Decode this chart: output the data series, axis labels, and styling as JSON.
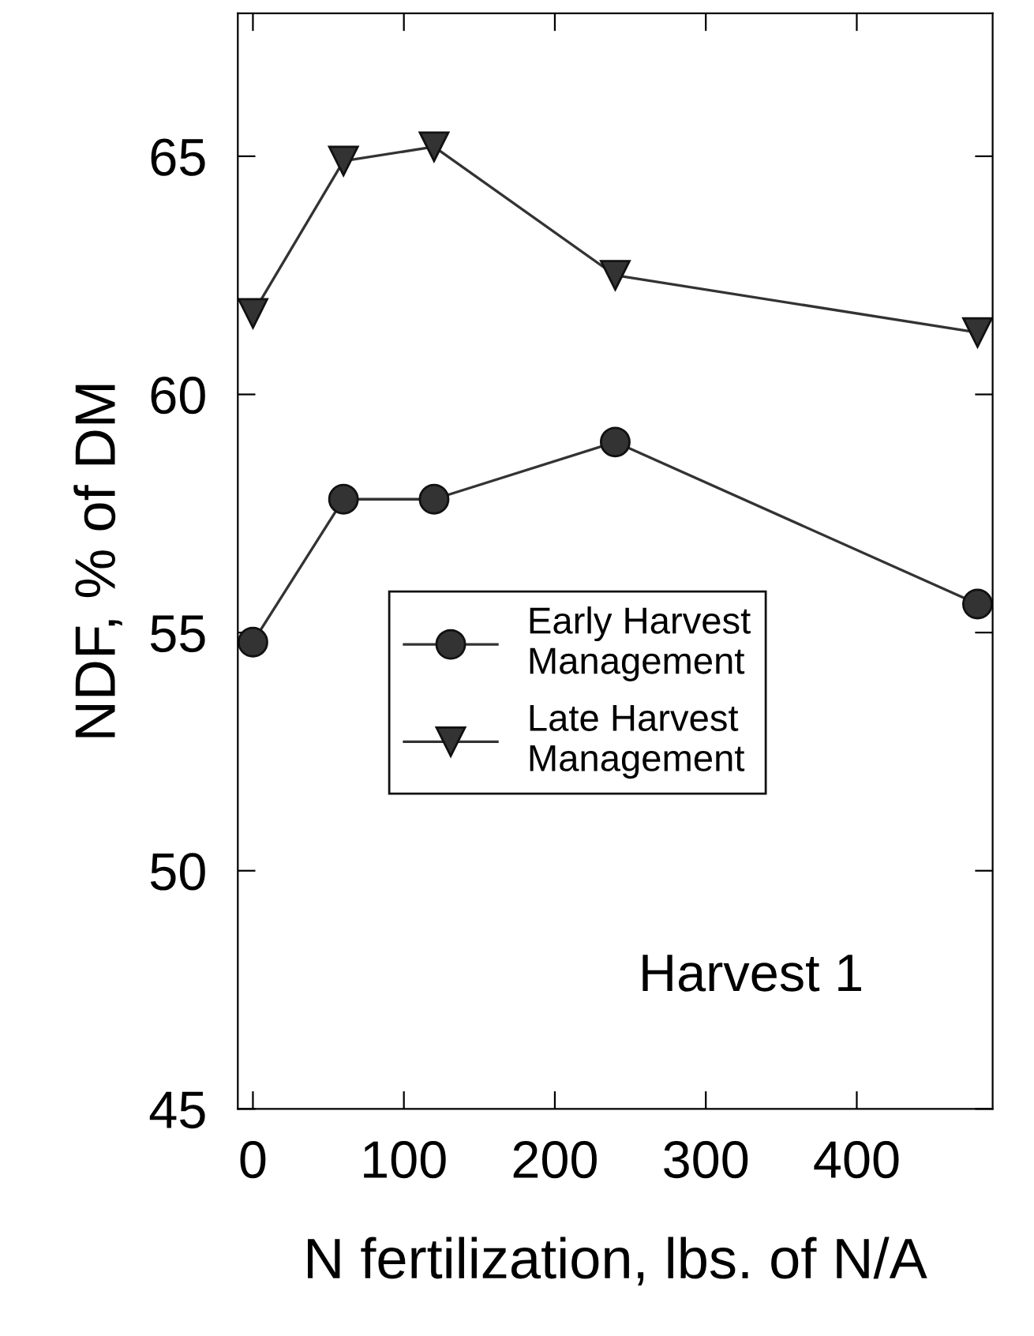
{
  "chart_data": {
    "type": "line",
    "xlabel": "N fertilization, lbs. of N/A",
    "ylabel": "NDF, % of DM",
    "x": [
      0,
      60,
      120,
      240,
      480
    ],
    "series": [
      {
        "name": "Early Harvest\nManagement",
        "color": "#333333",
        "marker": "circle",
        "values": [
          54.8,
          57.8,
          57.8,
          59.0,
          55.6
        ]
      },
      {
        "name": "Late Harvest\nManagement",
        "color": "#333333",
        "marker": "triangle",
        "values": [
          61.7,
          64.9,
          65.2,
          62.5,
          61.3
        ]
      }
    ],
    "xlim": [
      -10,
      490
    ],
    "ylim": [
      45,
      68
    ],
    "xticks": [
      0,
      100,
      200,
      300,
      400
    ],
    "yticks": [
      45,
      50,
      55,
      60,
      65
    ],
    "annotations": [
      "Harvest 1"
    ],
    "legend": "center",
    "grid": false,
    "line_style": "solid"
  }
}
